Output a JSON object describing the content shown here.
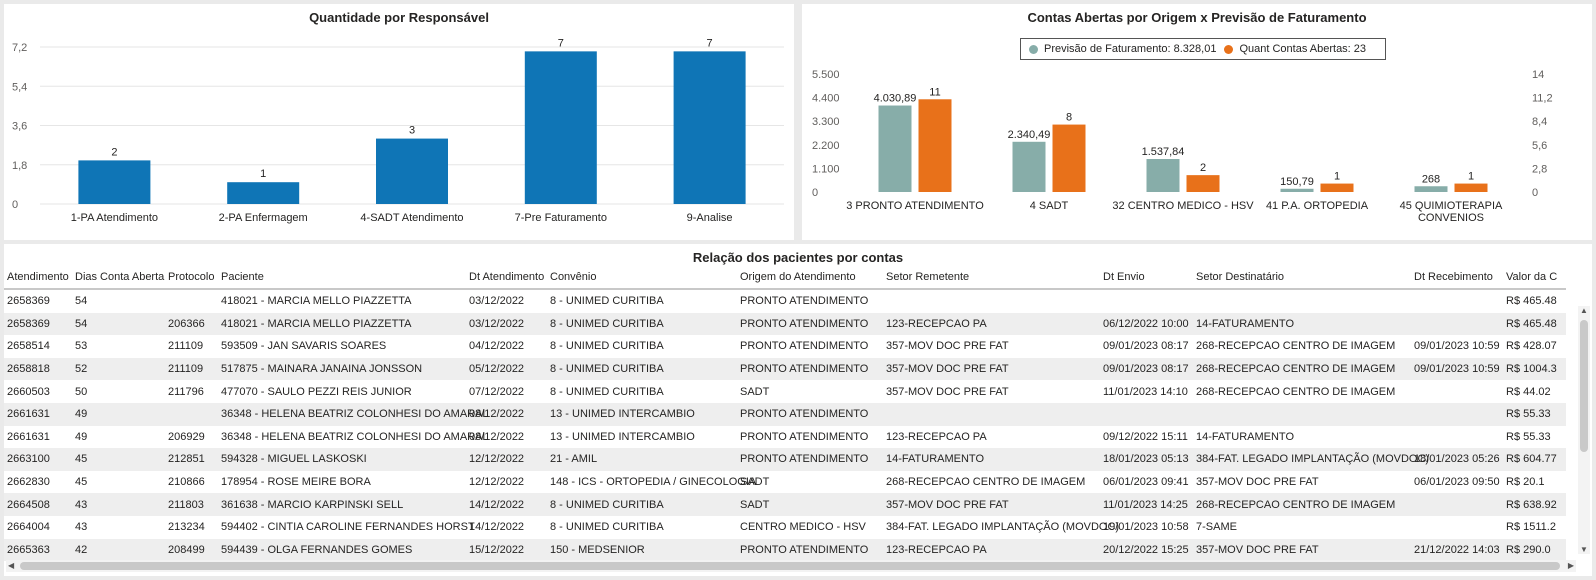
{
  "chart_data": [
    {
      "type": "bar",
      "title": "Quantidade por Responsável",
      "categories": [
        "1-PA Atendimento",
        "2-PA Enfermagem",
        "4-SADT Atendimento",
        "7-Pre Faturamento",
        "9-Analise"
      ],
      "values": [
        2,
        1,
        3,
        7,
        7
      ],
      "value_labels": [
        "2",
        "1",
        "3",
        "7",
        "7"
      ],
      "y_ticks": [
        "0",
        "1,8",
        "3,6",
        "5,4",
        "7,2"
      ],
      "ylim": [
        0,
        7.2
      ],
      "grid": true,
      "color": "#0f75b6"
    },
    {
      "type": "bar",
      "title": "Contas Abertas por Origem x Previsão de Faturamento",
      "categories": [
        "3 PRONTO ATENDIMENTO",
        "4 SADT",
        "32 CENTRO MEDICO - HSV",
        "41 P.A. ORTOPEDIA",
        "45 QUIMIOTERAPIA CONVENIOS"
      ],
      "series": [
        {
          "name": "Previsão de Faturamento: 8.328,01",
          "values": [
            4030.89,
            2340.49,
            1537.84,
            150.79,
            268
          ],
          "labels": [
            "4.030,89",
            "2.340,49",
            "1.537,84",
            "150,79",
            "268"
          ],
          "color": "#87ada9",
          "axis": "left"
        },
        {
          "name": "Quant Contas Abertas: 23",
          "values": [
            11,
            8,
            2,
            1,
            1
          ],
          "labels": [
            "11",
            "8",
            "2",
            "1",
            "1"
          ],
          "color": "#e8711a",
          "axis": "right"
        }
      ],
      "y_left_ticks": [
        "0",
        "1.100",
        "2.200",
        "3.300",
        "4.400",
        "5.500"
      ],
      "ylim_left": [
        0,
        5500
      ],
      "y_right_ticks": [
        "0",
        "2,8",
        "5,6",
        "8,4",
        "11,2",
        "14"
      ],
      "ylim_right": [
        0,
        14
      ],
      "legend_position": "top-center",
      "grid": false
    }
  ],
  "table": {
    "title": "Relação dos pacientes por contas",
    "columns": [
      "Atendimento",
      "Dias Conta Aberta",
      "Protocolo",
      "Paciente",
      "Dt Atendimento",
      "Convênio",
      "Origem do Atendimento",
      "Setor Remetente",
      "Dt Envio",
      "Setor Destinatário",
      "Dt Recebimento",
      "Valor da C"
    ],
    "rows": [
      [
        "2658369",
        "54",
        "",
        "418021 - MARCIA MELLO PIAZZETTA",
        "03/12/2022",
        "8 - UNIMED CURITIBA",
        "PRONTO ATENDIMENTO",
        "",
        "",
        "",
        "",
        "R$ 465.48"
      ],
      [
        "2658369",
        "54",
        "206366",
        "418021 - MARCIA MELLO PIAZZETTA",
        "03/12/2022",
        "8 - UNIMED CURITIBA",
        "PRONTO ATENDIMENTO",
        "123-RECEPCAO PA",
        "06/12/2022 10:00",
        "14-FATURAMENTO",
        "",
        "R$ 465.48"
      ],
      [
        "2658514",
        "53",
        "211109",
        "593509 - JAN SAVARIS SOARES",
        "04/12/2022",
        "8 - UNIMED CURITIBA",
        "PRONTO ATENDIMENTO",
        "357-MOV DOC PRE FAT",
        "09/01/2023 08:17",
        "268-RECEPCAO CENTRO DE IMAGEM",
        "09/01/2023 10:59",
        "R$ 428.07"
      ],
      [
        "2658818",
        "52",
        "211109",
        "517875 - MAINARA JANAINA JONSSON",
        "05/12/2022",
        "8 - UNIMED CURITIBA",
        "PRONTO ATENDIMENTO",
        "357-MOV DOC PRE FAT",
        "09/01/2023 08:17",
        "268-RECEPCAO CENTRO DE IMAGEM",
        "09/01/2023 10:59",
        "R$ 1004.3"
      ],
      [
        "2660503",
        "50",
        "211796",
        "477070 - SAULO PEZZI REIS JUNIOR",
        "07/12/2022",
        "8 - UNIMED CURITIBA",
        "SADT",
        "357-MOV DOC PRE FAT",
        "11/01/2023 14:10",
        "268-RECEPCAO CENTRO DE IMAGEM",
        "",
        "R$ 44.02"
      ],
      [
        "2661631",
        "49",
        "",
        "36348 - HELENA BEATRIZ COLONHESI DO AMARAL",
        "08/12/2022",
        "13 - UNIMED INTERCAMBIO",
        "PRONTO ATENDIMENTO",
        "",
        "",
        "",
        "",
        "R$ 55.33"
      ],
      [
        "2661631",
        "49",
        "206929",
        "36348 - HELENA BEATRIZ COLONHESI DO AMARAL",
        "08/12/2022",
        "13 - UNIMED INTERCAMBIO",
        "PRONTO ATENDIMENTO",
        "123-RECEPCAO PA",
        "09/12/2022 15:11",
        "14-FATURAMENTO",
        "",
        "R$ 55.33"
      ],
      [
        "2663100",
        "45",
        "212851",
        "594328 - MIGUEL LASKOSKI",
        "12/12/2022",
        "21 - AMIL",
        "PRONTO ATENDIMENTO",
        "14-FATURAMENTO",
        "18/01/2023 05:13",
        "384-FAT. LEGADO IMPLANTAÇÃO (MOVDOC)",
        "18/01/2023 05:26",
        "R$ 604.77"
      ],
      [
        "2662830",
        "45",
        "210866",
        "178954 - ROSE MEIRE BORA",
        "12/12/2022",
        "148 - ICS - ORTOPEDIA / GINECOLOGIA",
        "SADT",
        "268-RECEPCAO CENTRO DE IMAGEM",
        "06/01/2023 09:41",
        "357-MOV DOC PRE FAT",
        "06/01/2023 09:50",
        "R$ 20.1"
      ],
      [
        "2664508",
        "43",
        "211803",
        "361638 - MARCIO KARPINSKI SELL",
        "14/12/2022",
        "8 - UNIMED CURITIBA",
        "SADT",
        "357-MOV DOC PRE FAT",
        "11/01/2023 14:25",
        "268-RECEPCAO CENTRO DE IMAGEM",
        "",
        "R$ 638.92"
      ],
      [
        "2664004",
        "43",
        "213234",
        "594402 - CINTIA CAROLINE FERNANDES HORST",
        "14/12/2022",
        "8 - UNIMED CURITIBA",
        "CENTRO MEDICO - HSV",
        "384-FAT. LEGADO IMPLANTAÇÃO (MOVDOC)",
        "19/01/2023 10:58",
        "7-SAME",
        "",
        "R$ 1511.2"
      ],
      [
        "2665363",
        "42",
        "208499",
        "594439 - OLGA FERNANDES GOMES",
        "15/12/2022",
        "150 - MEDSENIOR",
        "PRONTO ATENDIMENTO",
        "123-RECEPCAO PA",
        "20/12/2022 15:25",
        "357-MOV DOC PRE FAT",
        "21/12/2022 14:03",
        "R$ 290.0"
      ]
    ]
  }
}
